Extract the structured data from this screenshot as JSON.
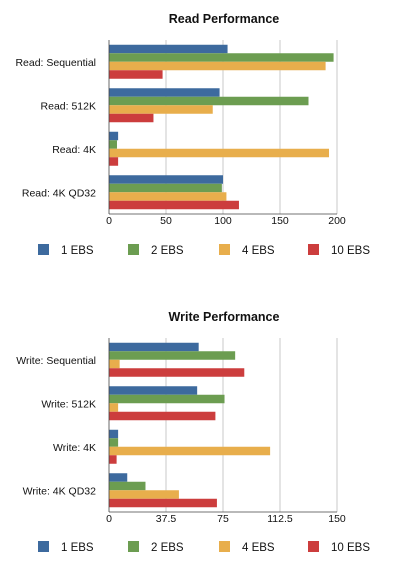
{
  "chart_data": [
    {
      "type": "bar",
      "orientation": "horizontal",
      "title": "Read Performance",
      "categories": [
        "Read: Sequential",
        "Read: 512K",
        "Read: 4K",
        "Read: 4K QD32"
      ],
      "series": [
        {
          "name": "1 EBS",
          "color": "#3d6a9e",
          "values": [
            104,
            97,
            8,
            100
          ]
        },
        {
          "name": "2 EBS",
          "color": "#6c9d51",
          "values": [
            197,
            175,
            7,
            99
          ]
        },
        {
          "name": "4 EBS",
          "color": "#e8ae4c",
          "values": [
            190,
            91,
            193,
            103
          ]
        },
        {
          "name": "10 EBS",
          "color": "#cc3d3d",
          "values": [
            47,
            39,
            8,
            114
          ]
        }
      ],
      "xlim": [
        0,
        200
      ],
      "xticks": [
        "0",
        "50",
        "100",
        "150",
        "200"
      ],
      "xtick_values": [
        0,
        50,
        100,
        150,
        200
      ],
      "grid": true,
      "legend": "bottom"
    },
    {
      "type": "bar",
      "orientation": "horizontal",
      "title": "Write Performance",
      "categories": [
        "Write: Sequential",
        "Write: 512K",
        "Write: 4K",
        "Write: 4K QD32"
      ],
      "series": [
        {
          "name": "1 EBS",
          "color": "#3d6a9e",
          "values": [
            59,
            58,
            6,
            12
          ]
        },
        {
          "name": "2 EBS",
          "color": "#6c9d51",
          "values": [
            83,
            76,
            6,
            24
          ]
        },
        {
          "name": "4 EBS",
          "color": "#e8ae4c",
          "values": [
            7,
            6,
            106,
            46
          ]
        },
        {
          "name": "10 EBS",
          "color": "#cc3d3d",
          "values": [
            89,
            70,
            5,
            71
          ]
        }
      ],
      "xlim": [
        0,
        150
      ],
      "xticks": [
        "0",
        "37.5",
        "75",
        "112.5",
        "150"
      ],
      "xtick_values": [
        0,
        37.5,
        75,
        112.5,
        150
      ],
      "grid": true,
      "legend": "bottom"
    }
  ]
}
